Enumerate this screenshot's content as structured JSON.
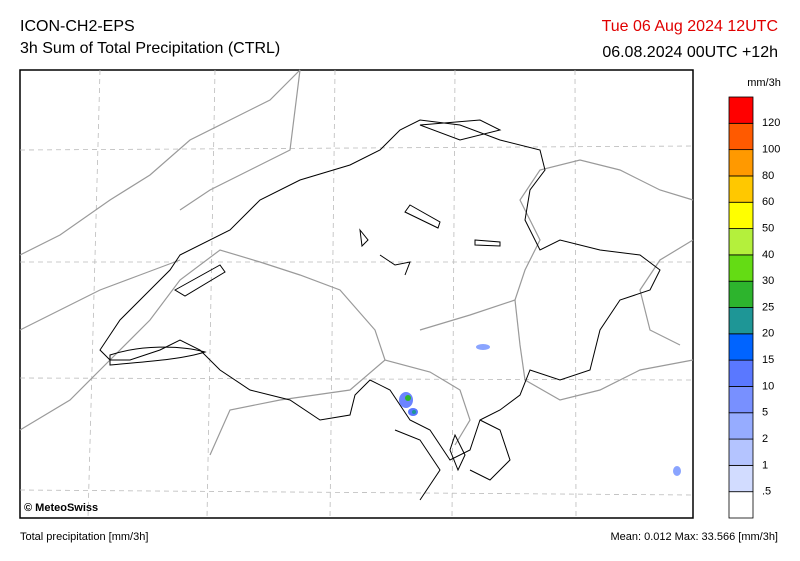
{
  "header": {
    "model": "ICON-CH2-EPS",
    "product": "3h Sum of Total Precipitation (CTRL)",
    "valid_time": "Tue 06 Aug 2024 12UTC",
    "run_time": "06.08.2024 00UTC +12h"
  },
  "colorbar": {
    "unit": "mm/3h",
    "labels": [
      ".5",
      "1",
      "2",
      "5",
      "10",
      "15",
      "20",
      "25",
      "30",
      "40",
      "50",
      "60",
      "80",
      "100",
      "120"
    ],
    "colors": [
      "#ffffff",
      "#d2dcff",
      "#b4c4ff",
      "#96acff",
      "#7890ff",
      "#5a78ff",
      "#0064ff",
      "#1e9696",
      "#2db42d",
      "#64dc14",
      "#b4f03c",
      "#ffff00",
      "#ffc800",
      "#ff9900",
      "#ff5a00",
      "#ff0000"
    ]
  },
  "map": {
    "credit": "© MeteoSwiss"
  },
  "footer": {
    "left": "Total precipitation [mm/3h]",
    "right": "Mean:  0.012 Max:  33.566 [mm/3h]"
  }
}
